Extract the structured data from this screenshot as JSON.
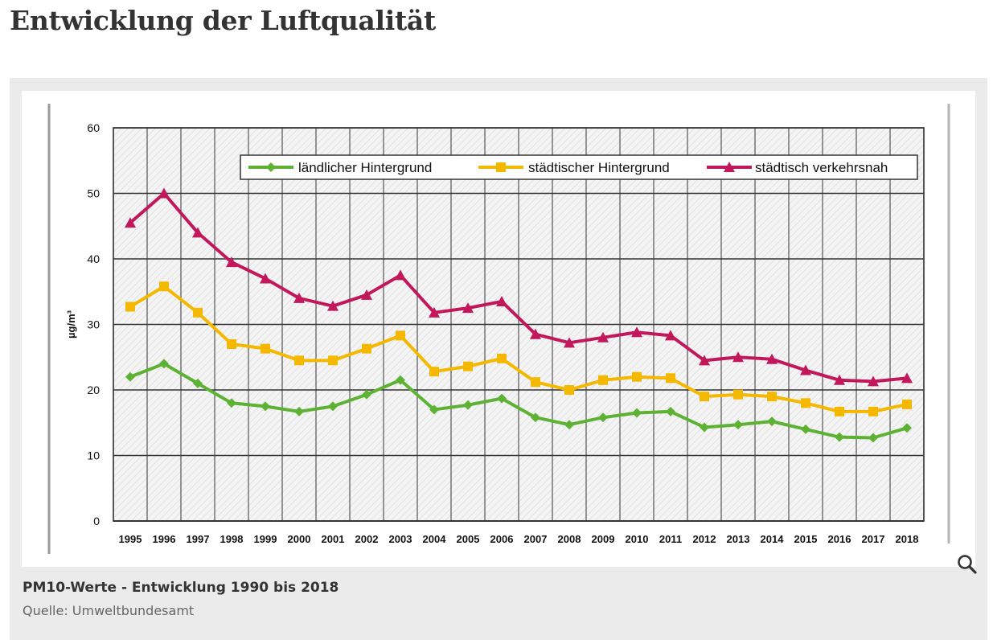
{
  "page": {
    "title": "Entwicklung der Luftqualität"
  },
  "figure": {
    "caption": "PM10-Werte - Entwicklung 1990 bis 2018",
    "source": "Quelle: Umweltbundesamt",
    "zoom_icon": "magnifier-icon"
  },
  "chart_data": {
    "type": "line",
    "title": "",
    "xlabel": "",
    "ylabel": "µg/m³",
    "ylim": [
      0,
      60
    ],
    "yticks": [
      "0",
      "10",
      "20",
      "30",
      "40",
      "50",
      "60"
    ],
    "grid": true,
    "legend_position": "top",
    "categories": [
      "1995",
      "1996",
      "1997",
      "1998",
      "1999",
      "2000",
      "2001",
      "2002",
      "2003",
      "2004",
      "2005",
      "2006",
      "2007",
      "2008",
      "2009",
      "2010",
      "2011",
      "2012",
      "2013",
      "2014",
      "2015",
      "2016",
      "2017",
      "2018"
    ],
    "series": [
      {
        "name": "ländlicher Hintergrund",
        "color": "#5db233",
        "marker": "diamond",
        "values": [
          22.0,
          24.0,
          21.0,
          18.0,
          17.5,
          16.7,
          17.5,
          19.3,
          21.5,
          17.0,
          17.7,
          18.7,
          15.8,
          14.7,
          15.8,
          16.5,
          16.7,
          14.3,
          14.7,
          15.2,
          14.0,
          12.8,
          12.7,
          14.2
        ]
      },
      {
        "name": "städtischer Hintergrund",
        "color": "#f5b800",
        "marker": "square",
        "values": [
          32.7,
          35.8,
          31.8,
          27.0,
          26.3,
          24.5,
          24.5,
          26.3,
          28.3,
          22.8,
          23.6,
          24.8,
          21.2,
          20.0,
          21.5,
          22.0,
          21.8,
          19.0,
          19.3,
          19.0,
          18.0,
          16.7,
          16.7,
          17.8
        ]
      },
      {
        "name": "städtisch verkehrsnah",
        "color": "#c2185b",
        "marker": "triangle",
        "values": [
          45.5,
          50.0,
          44.0,
          39.5,
          37.0,
          34.0,
          32.8,
          34.5,
          37.5,
          31.8,
          32.5,
          33.5,
          28.5,
          27.2,
          28.0,
          28.8,
          28.3,
          24.5,
          25.0,
          24.7,
          23.0,
          21.5,
          21.3,
          21.8
        ]
      }
    ]
  }
}
